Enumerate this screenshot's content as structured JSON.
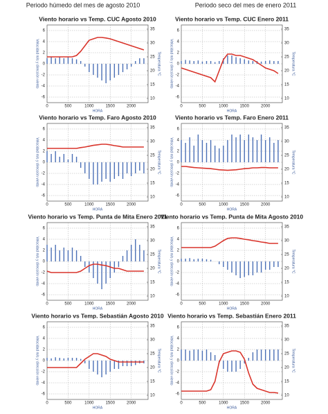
{
  "column_titles": [
    "Periodo húmedo del mes de agosto 2010",
    "Periodo seco del mes de enero 2011"
  ],
  "chart_data": [
    {
      "type": "stick-line",
      "title": "Viento horario vs Temp. CUC Agosto 2010",
      "xlabel": "HORA",
      "ylabel": "Velocidad m/s y dirección viento",
      "y2label": "Temperatura °C",
      "x": [
        0,
        100,
        200,
        300,
        400,
        500,
        600,
        700,
        800,
        900,
        1000,
        1100,
        1200,
        1300,
        1400,
        1500,
        1600,
        1700,
        1800,
        1900,
        2000,
        2100,
        2200,
        2300
      ],
      "xlim": [
        0,
        2400
      ],
      "xticks": [
        0,
        500,
        1000,
        1500,
        2000
      ],
      "ylim": [
        -7,
        7
      ],
      "yticks": [
        -6,
        -4,
        -2,
        0,
        2,
        4,
        6
      ],
      "y2lim": [
        8.5,
        36.5
      ],
      "y2ticks": [
        10,
        15,
        20,
        25,
        30,
        35
      ],
      "grid": true,
      "series": [
        {
          "color": "#4a6fb5",
          "values": [
            1,
            1.2,
            1,
            1.3,
            1,
            1.2,
            1,
            0.8,
            0.5,
            -0.5,
            -1.5,
            -2,
            -2.5,
            -3,
            -3.5,
            -3,
            -2.5,
            -2,
            -1.5,
            -1,
            -0.5,
            0.5,
            1,
            1
          ]
        },
        {
          "color": "#d9342b",
          "axis": "y2",
          "values": [
            25,
            25,
            25,
            25,
            25,
            25,
            25,
            25.5,
            27,
            29,
            31,
            31.5,
            32,
            32,
            31.8,
            31.5,
            31,
            30.5,
            30,
            29.5,
            29,
            28.5,
            28,
            27.5
          ]
        }
      ]
    },
    {
      "type": "stick-line",
      "title": "Viento horario vs Temp. CUC Enero 2011",
      "xlabel": "HORA",
      "ylabel": "Velocidad m/s y dirección viento",
      "y2label": "Temperatura °C",
      "x": [
        0,
        100,
        200,
        300,
        400,
        500,
        600,
        700,
        800,
        900,
        1000,
        1100,
        1200,
        1300,
        1400,
        1500,
        1600,
        1700,
        1800,
        1900,
        2000,
        2100,
        2200,
        2300
      ],
      "xlim": [
        0,
        2400
      ],
      "xticks": [
        0,
        500,
        1000,
        1500,
        2000
      ],
      "ylim": [
        -7,
        7
      ],
      "yticks": [
        -6,
        -4,
        -2,
        0,
        2,
        4,
        6
      ],
      "y2lim": [
        8.5,
        36.5
      ],
      "y2ticks": [
        10,
        15,
        20,
        25,
        30,
        35
      ],
      "grid": true,
      "series": [
        {
          "color": "#4a6fb5",
          "values": [
            0.5,
            0.7,
            0.6,
            0.5,
            0.6,
            0.4,
            0.5,
            0.5,
            0.3,
            0.5,
            1,
            1.5,
            1.5,
            1.2,
            1,
            0.8,
            0.6,
            0.5,
            0.5,
            0.4,
            0.5,
            0.6,
            0.5,
            0.5
          ]
        },
        {
          "color": "#d9342b",
          "axis": "y2",
          "values": [
            21,
            20.5,
            20,
            19.5,
            19,
            18.5,
            18,
            17.5,
            16,
            20,
            24,
            26,
            26,
            25.5,
            25.5,
            25,
            24.5,
            24,
            23,
            22,
            21,
            20.5,
            20,
            19
          ]
        }
      ]
    },
    {
      "type": "stick-line",
      "title": "Viento horario vs Temp.  Faro Agosto 2010",
      "xlabel": "HORA",
      "ylabel": "Velocidad m/s y dirección viento",
      "y2label": "Temperatura °C",
      "x": [
        0,
        100,
        200,
        300,
        400,
        500,
        600,
        700,
        800,
        900,
        1000,
        1100,
        1200,
        1300,
        1400,
        1500,
        1600,
        1700,
        1800,
        1900,
        2000,
        2100,
        2200,
        2300
      ],
      "xlim": [
        0,
        2400
      ],
      "xticks": [
        0,
        500,
        1000,
        1500,
        2000
      ],
      "ylim": [
        -7,
        7
      ],
      "yticks": [
        -6,
        -4,
        -2,
        0,
        2,
        4,
        6
      ],
      "y2lim": [
        8.5,
        36.5
      ],
      "y2ticks": [
        10,
        15,
        20,
        25,
        30,
        35
      ],
      "grid": true,
      "series": [
        {
          "color": "#4a6fb5",
          "values": [
            2,
            1.5,
            2,
            1,
            1.5,
            0.5,
            1.5,
            1,
            -1,
            -2,
            -3,
            -4,
            -4,
            -3.5,
            -3,
            -3.5,
            -3,
            -2.5,
            -3,
            -2,
            -2.5,
            -2,
            -1.5,
            -2
          ]
        },
        {
          "color": "#d9342b",
          "axis": "y2",
          "values": [
            27.5,
            27.5,
            27.5,
            27.5,
            27.5,
            27.5,
            27.5,
            27.5,
            27.8,
            28,
            28.3,
            28.6,
            28.8,
            29,
            29,
            28.8,
            28.5,
            28.3,
            28,
            28,
            28,
            28,
            28,
            28
          ]
        }
      ]
    },
    {
      "type": "stick-line",
      "title": "Viento horario vs Temp. Faro Enero 2011",
      "xlabel": "HORA",
      "ylabel": "Velocidad m/s y dirección viento",
      "y2label": "Temperatura °C",
      "x": [
        0,
        100,
        200,
        300,
        400,
        500,
        600,
        700,
        800,
        900,
        1000,
        1100,
        1200,
        1300,
        1400,
        1500,
        1600,
        1700,
        1800,
        1900,
        2000,
        2100,
        2200,
        2300
      ],
      "xlim": [
        0,
        2400
      ],
      "xticks": [
        0,
        500,
        1000,
        1500,
        2000
      ],
      "ylim": [
        -7,
        7
      ],
      "yticks": [
        -6,
        -4,
        -2,
        0,
        2,
        4,
        6
      ],
      "y2lim": [
        8.5,
        36.5
      ],
      "y2ticks": [
        10,
        15,
        20,
        25,
        30,
        35
      ],
      "grid": true,
      "series": [
        {
          "color": "#4a6fb5",
          "values": [
            4,
            3.5,
            4.5,
            3,
            5,
            4,
            3.5,
            4,
            3,
            2.5,
            3,
            4,
            5,
            4.5,
            5,
            4,
            5,
            4.5,
            4,
            5,
            4,
            4.5,
            3.5,
            4
          ]
        },
        {
          "color": "#d9342b",
          "axis": "y2",
          "values": [
            21,
            21,
            20.8,
            20.6,
            20.5,
            20.4,
            20.3,
            20.2,
            20,
            19.8,
            19.7,
            19.6,
            19.7,
            19.8,
            20,
            20.2,
            20.3,
            20.5,
            20.5,
            20.6,
            20.6,
            20.5,
            20.5,
            20.5
          ]
        }
      ]
    },
    {
      "type": "stick-line",
      "title": "Viento horario vs Temp. Punta de Mita Enero 2011",
      "xlabel": "HORA",
      "ylabel": "Velocidad m/s y dirección viento",
      "y2label": "Temperatura °C",
      "x": [
        0,
        100,
        200,
        300,
        400,
        500,
        600,
        700,
        800,
        900,
        1000,
        1100,
        1200,
        1300,
        1400,
        1500,
        1600,
        1700,
        1800,
        1900,
        2000,
        2100,
        2200,
        2300
      ],
      "xlim": [
        0,
        2400
      ],
      "xticks": [
        0,
        500,
        1000,
        1500,
        2000
      ],
      "ylim": [
        -7,
        7
      ],
      "yticks": [
        -6,
        -4,
        -2,
        0,
        2,
        4,
        6
      ],
      "y2lim": [
        8.5,
        36.5
      ],
      "y2ticks": [
        10,
        15,
        20,
        25,
        30,
        35
      ],
      "grid": true,
      "series": [
        {
          "color": "#4a6fb5",
          "values": [
            3,
            2.5,
            3,
            2,
            2.5,
            2,
            2.5,
            2,
            1,
            -1,
            -2,
            -3,
            -4,
            -5,
            -4,
            -3,
            -2,
            -1,
            1,
            2,
            3,
            4,
            3,
            2
          ]
        },
        {
          "color": "#d9342b",
          "axis": "y2",
          "values": [
            19,
            18.5,
            18.5,
            18.5,
            18.5,
            18.5,
            18.5,
            18.5,
            19,
            20,
            21,
            21.5,
            21.5,
            21.2,
            21,
            20.5,
            20,
            20,
            19.5,
            19,
            19,
            19,
            19,
            19
          ]
        }
      ]
    },
    {
      "type": "stick-line",
      "title": "Viento horario vs Temp. Punta de Mita Agosto 2010",
      "xlabel": "HORA",
      "ylabel": "Velocidad m/s y dirección viento",
      "y2label": "Temperatura °C",
      "x": [
        0,
        100,
        200,
        300,
        400,
        500,
        600,
        700,
        800,
        900,
        1000,
        1100,
        1200,
        1300,
        1400,
        1500,
        1600,
        1700,
        1800,
        1900,
        2000,
        2100,
        2200,
        2300
      ],
      "xlim": [
        0,
        2400
      ],
      "xticks": [
        0,
        500,
        1000,
        1500,
        2000
      ],
      "ylim": [
        -7,
        7
      ],
      "yticks": [
        -6,
        -4,
        -2,
        0,
        2,
        4,
        6
      ],
      "y2lim": [
        8.5,
        36.5
      ],
      "y2ticks": [
        10,
        15,
        20,
        25,
        30,
        35
      ],
      "grid": true,
      "series": [
        {
          "color": "#4a6fb5",
          "values": [
            0.5,
            0.5,
            0.6,
            0.4,
            0.5,
            0.5,
            0.4,
            0.3,
            0,
            -0.5,
            -1,
            -1.5,
            -2,
            -2.5,
            -3,
            -2.8,
            -2.5,
            -2.5,
            -2,
            -2,
            -1.5,
            -1.5,
            -1,
            -1
          ]
        },
        {
          "color": "#d9342b",
          "axis": "y2",
          "values": [
            27.5,
            27.5,
            27.5,
            27.5,
            27.5,
            27.5,
            27.5,
            27.5,
            28,
            29,
            30,
            30.8,
            31,
            31,
            30.8,
            30.5,
            30.3,
            30,
            29.8,
            29.5,
            29.3,
            29,
            29,
            29
          ]
        }
      ]
    },
    {
      "type": "stick-line",
      "title": "Viento horario vs Temp. Sebastián Agosto 2010",
      "xlabel": "HORA",
      "ylabel": "Velocidad m/s y dirección viento",
      "y2label": "Temperatura °C",
      "x": [
        0,
        100,
        200,
        300,
        400,
        500,
        600,
        700,
        800,
        900,
        1000,
        1100,
        1200,
        1300,
        1400,
        1500,
        1600,
        1700,
        1800,
        1900,
        2000,
        2100,
        2200,
        2300
      ],
      "xlim": [
        0,
        2400
      ],
      "xticks": [
        0,
        500,
        1000,
        1500,
        2000
      ],
      "ylim": [
        -7,
        7
      ],
      "yticks": [
        -6,
        -4,
        -2,
        0,
        2,
        4,
        6
      ],
      "y2lim": [
        8.5,
        36.5
      ],
      "y2ticks": [
        10,
        15,
        20,
        25,
        30,
        35
      ],
      "grid": true,
      "series": [
        {
          "color": "#4a6fb5",
          "values": [
            0.5,
            0.4,
            0.6,
            0.5,
            0.4,
            0.5,
            0.5,
            0.5,
            0.3,
            -0.5,
            -1.5,
            -2,
            -2.5,
            -3,
            -2.5,
            -2,
            -1.5,
            -1.5,
            -1,
            -1,
            -1,
            -0.8,
            -0.5,
            -0.5
          ]
        },
        {
          "color": "#d9342b",
          "axis": "y2",
          "values": [
            20,
            20,
            20,
            20,
            20,
            20,
            20,
            20,
            21.5,
            23,
            24,
            25,
            25,
            24.5,
            24,
            23,
            22.5,
            22,
            22,
            22,
            22,
            22,
            22,
            22
          ]
        }
      ]
    },
    {
      "type": "stick-line",
      "title": "Viento horario vs Temp. Sebastián Enero 2011",
      "xlabel": "HORA",
      "ylabel": "Velocidad m/s y dirección viento",
      "y2label": "Temperatura °C",
      "x": [
        0,
        100,
        200,
        300,
        400,
        500,
        600,
        700,
        800,
        900,
        1000,
        1100,
        1200,
        1300,
        1400,
        1500,
        1600,
        1700,
        1800,
        1900,
        2000,
        2100,
        2200,
        2300
      ],
      "xlim": [
        0,
        2400
      ],
      "xticks": [
        0,
        500,
        1000,
        1500,
        2000
      ],
      "ylim": [
        -7,
        7
      ],
      "yticks": [
        -6,
        -4,
        -2,
        0,
        2,
        4,
        6
      ],
      "y2lim": [
        8.5,
        36.5
      ],
      "y2ticks": [
        10,
        15,
        20,
        25,
        30,
        35
      ],
      "grid": true,
      "series": [
        {
          "color": "#4a6fb5",
          "values": [
            2,
            2,
            1.8,
            2,
            2,
            1.8,
            2,
            1.5,
            1,
            -0.5,
            -1.5,
            -2,
            -2,
            -2,
            -1.5,
            -0.5,
            0.5,
            1.5,
            2,
            2,
            2,
            2,
            2,
            2
          ]
        },
        {
          "color": "#d9342b",
          "axis": "y2",
          "values": [
            11.5,
            11.5,
            11.5,
            11.5,
            11.5,
            11.5,
            11.5,
            12,
            15,
            22,
            25,
            25.5,
            26,
            26,
            25.5,
            23,
            18,
            14,
            12.5,
            12,
            11.5,
            11,
            11,
            10.8
          ]
        }
      ]
    }
  ]
}
